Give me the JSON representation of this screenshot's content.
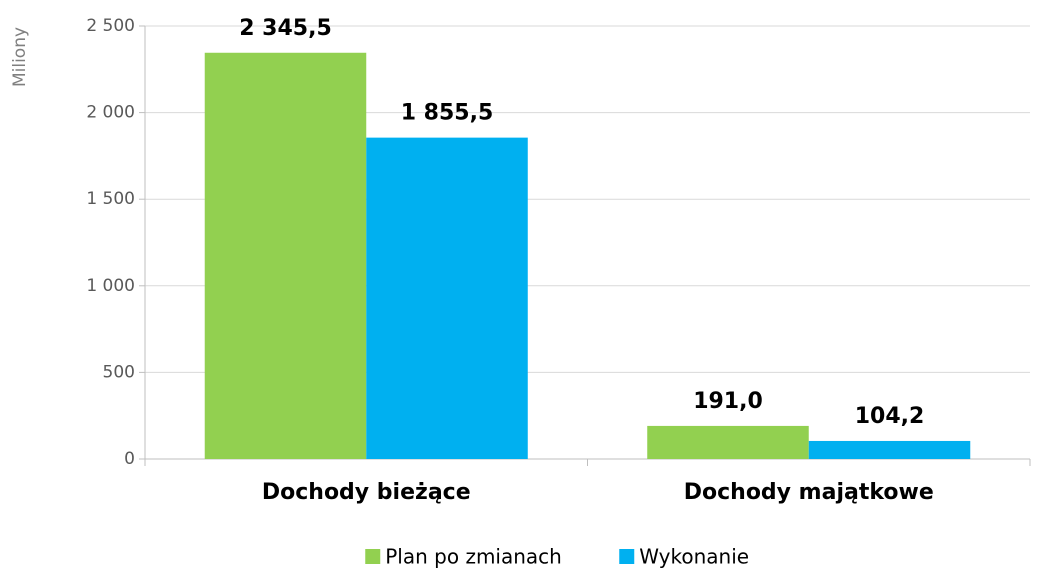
{
  "chart_data": {
    "type": "bar",
    "y_axis_label": "Miliony",
    "categories": [
      "Dochody bieżące",
      "Dochody majątkowe"
    ],
    "series": [
      {
        "name": "Plan po zmianach",
        "color": "#92d050",
        "values": [
          2345.5,
          191.0
        ],
        "value_labels": [
          "2 345,5",
          "191,0"
        ]
      },
      {
        "name": "Wykonanie",
        "color": "#00b0f0",
        "values": [
          1855.5,
          104.2
        ],
        "value_labels": [
          "1 855,5",
          "104,2"
        ]
      }
    ],
    "ylim": [
      0,
      2500
    ],
    "yticks": [
      0,
      500,
      {
        "value": 1000,
        "label": "1 000"
      },
      {
        "value": 1500,
        "label": "1 500"
      },
      {
        "value": 2000,
        "label": "2 000"
      },
      {
        "value": 2500,
        "label": "2 500"
      }
    ],
    "grid": true,
    "legend": "bottom"
  }
}
